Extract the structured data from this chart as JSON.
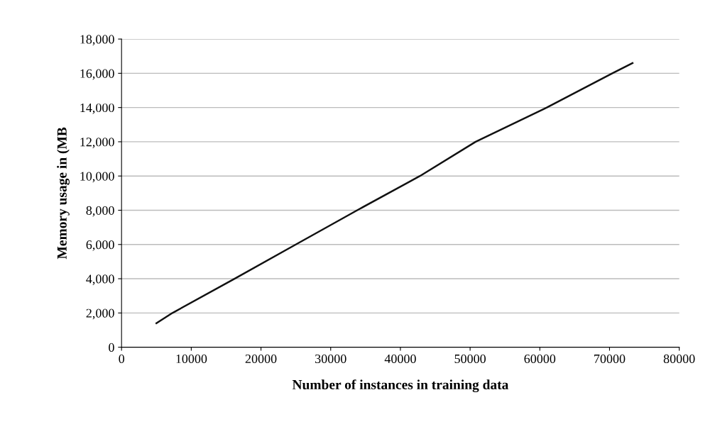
{
  "chart_data": {
    "type": "line",
    "xlabel": "Number of instances in training data",
    "ylabel": "Memory usage in (MB",
    "series": [
      {
        "color": "#111111",
        "x": [
          5000,
          7300,
          16200,
          25000,
          33800,
          42800,
          50800,
          61000,
          70400,
          73300
        ],
        "values": [
          1400,
          2000,
          4000,
          6000,
          8000,
          10000,
          12000,
          14000,
          16000,
          16600
        ]
      }
    ],
    "xlim": [
      0,
      80000
    ],
    "xticks": [
      0,
      10000,
      20000,
      30000,
      40000,
      50000,
      60000,
      70000,
      80000
    ],
    "ylim": [
      0,
      18000
    ],
    "yticks": [
      {
        "value": 0,
        "label": "0"
      },
      {
        "value": 2000,
        "label": "2,000"
      },
      {
        "value": 4000,
        "label": "4,000"
      },
      {
        "value": 6000,
        "label": "6,000"
      },
      {
        "value": 8000,
        "label": "8,000"
      },
      {
        "value": 10000,
        "label": "10,000"
      },
      {
        "value": 12000,
        "label": "12,000"
      },
      {
        "value": 14000,
        "label": "14,000"
      },
      {
        "value": 16000,
        "label": "16,000"
      },
      {
        "value": 18000,
        "label": "18,000"
      }
    ],
    "grid": "y",
    "legend": false,
    "marker": "none",
    "line_style": "solid"
  }
}
